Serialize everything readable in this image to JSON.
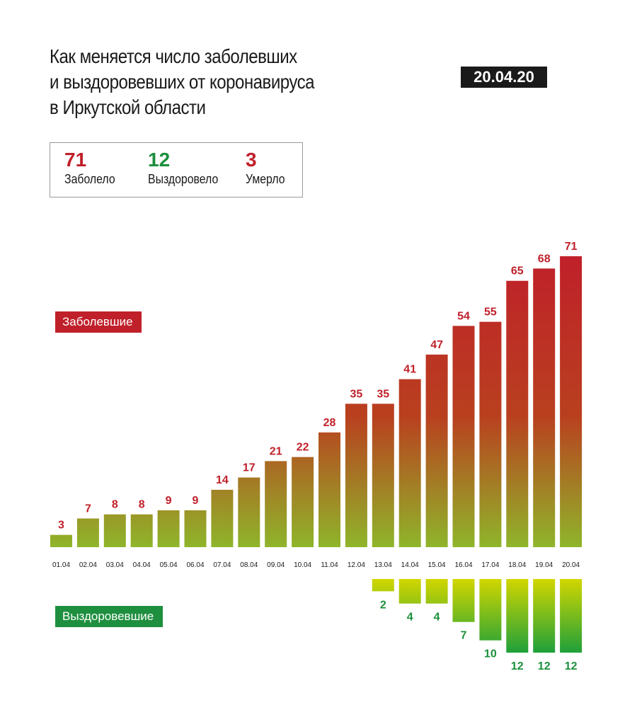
{
  "header": {
    "title_lines": [
      "Как меняется число заболевших",
      "и выздоровевших от коронавируса",
      "в Иркутской области"
    ],
    "date": "20.04.20"
  },
  "stats": [
    {
      "value": "71",
      "label": "Заболело",
      "color": "#c0202a"
    },
    {
      "value": "12",
      "label": "Выздоровело",
      "color": "#1c8f3c"
    },
    {
      "value": "3",
      "label": "Умерло",
      "color": "#c0202a"
    }
  ],
  "legend": {
    "sick_label": "Заболевшие",
    "recovered_label": "Выздоровевшие"
  },
  "colors": {
    "sick": "#c0202a",
    "sick_gradient_top": "#c0202a",
    "sick_gradient_bottom": "#8fb52a",
    "recovered_text": "#1c8f3c",
    "recovered_tag": "#1e8f3e",
    "recovered_gradient_top": "#d2d600",
    "recovered_gradient_bottom": "#1fa03a"
  },
  "chart_data": {
    "type": "bar",
    "categories": [
      "01.04",
      "02.04",
      "03.04",
      "04.04",
      "05.04",
      "06.04",
      "07.04",
      "08.04",
      "09.04",
      "10.04",
      "11.04",
      "12.04",
      "13.04",
      "14.04",
      "15.04",
      "16.04",
      "17.04",
      "18.04",
      "19.04",
      "20.04"
    ],
    "series": [
      {
        "name": "Заболевшие",
        "values": [
          3,
          7,
          8,
          8,
          9,
          9,
          14,
          17,
          21,
          22,
          28,
          35,
          35,
          41,
          47,
          54,
          55,
          65,
          68,
          71
        ]
      },
      {
        "name": "Выздоровевшие",
        "values": [
          null,
          null,
          null,
          null,
          null,
          null,
          null,
          null,
          null,
          null,
          null,
          null,
          2,
          4,
          4,
          7,
          10,
          12,
          12,
          12
        ]
      }
    ],
    "legend": "left",
    "grid": false
  }
}
